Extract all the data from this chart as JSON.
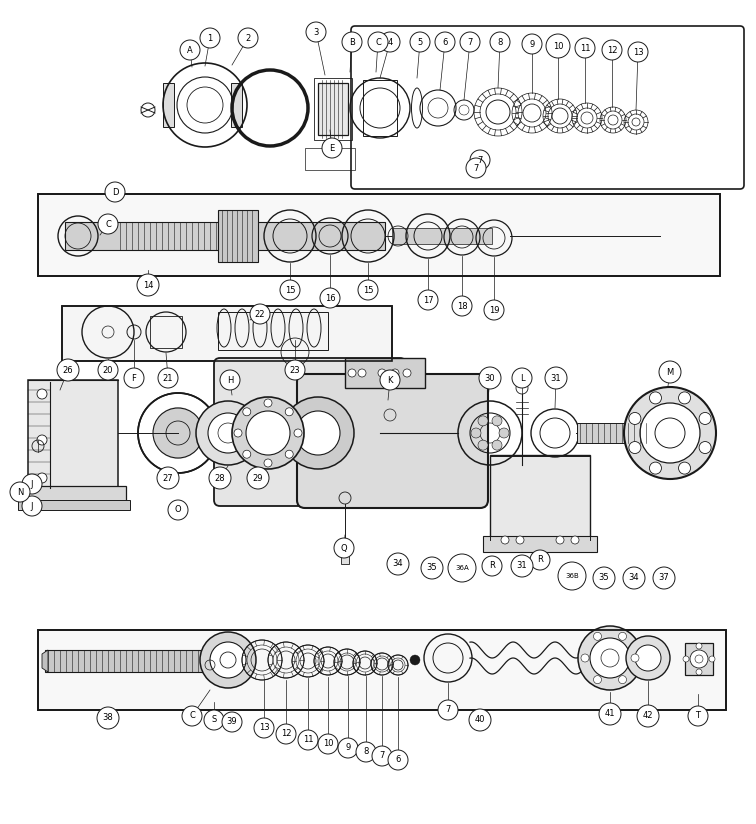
{
  "bg_color": "#f5f5f5",
  "line_color": "#1a1a1a",
  "fig_width": 7.56,
  "fig_height": 8.24,
  "dpi": 100,
  "xlim": [
    0,
    756
  ],
  "ylim": [
    0,
    824
  ]
}
